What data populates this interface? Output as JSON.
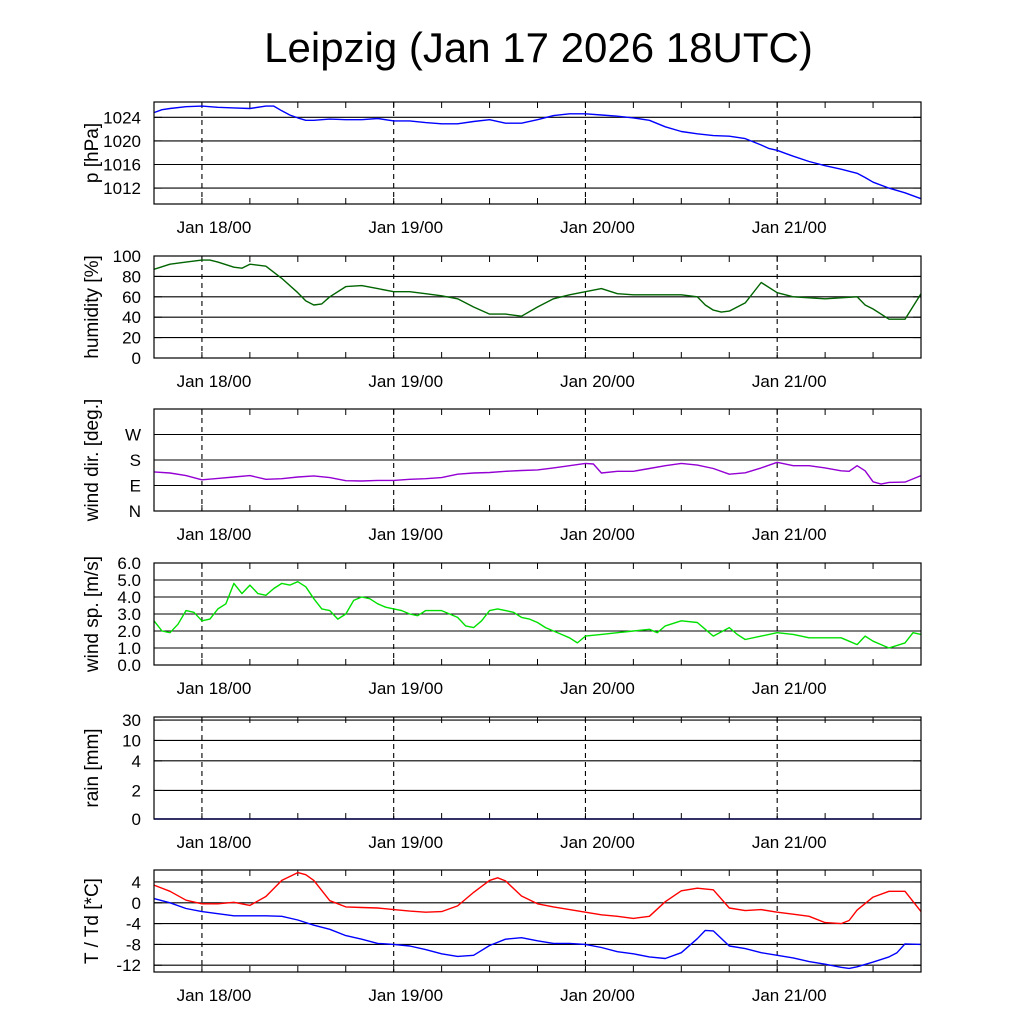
{
  "title": "Leipzig (Jan 17 2026 18UTC)",
  "chart_data": [
    {
      "type": "line",
      "id": "pressure",
      "ylabel": "p [hPa]",
      "ylim": [
        1009.3,
        1026.6
      ],
      "yticks": [
        1012,
        1016,
        1020,
        1024
      ],
      "ytick_labels": [
        "1012",
        "1016",
        "1020",
        "1024"
      ],
      "xlim": [
        0,
        96
      ],
      "xticks": [
        6,
        30,
        54,
        78
      ],
      "xtick_labels": [
        "Jan 18/00",
        "Jan 19/00",
        "Jan 20/00",
        "Jan 21/00"
      ],
      "series": [
        {
          "name": "p",
          "color": "#0000ff",
          "x": [
            0,
            1,
            2,
            4,
            6,
            8,
            10,
            12,
            14,
            15,
            16,
            17,
            18,
            19,
            20,
            22,
            24,
            26,
            28,
            30,
            32,
            34,
            36,
            38,
            40,
            42,
            44,
            46,
            48,
            50,
            52,
            54,
            56,
            58,
            60,
            62,
            64,
            66,
            68,
            70,
            72,
            74,
            76,
            77,
            78,
            79,
            80,
            82,
            84,
            86,
            88,
            89,
            90,
            92,
            94,
            96
          ],
          "values": [
            1024.8,
            1025.3,
            1025.5,
            1025.8,
            1025.9,
            1025.7,
            1025.6,
            1025.5,
            1025.9,
            1025.9,
            1025.1,
            1024.4,
            1023.9,
            1023.5,
            1023.5,
            1023.7,
            1023.6,
            1023.6,
            1023.8,
            1023.4,
            1023.4,
            1023.1,
            1022.9,
            1022.9,
            1023.3,
            1023.6,
            1023.0,
            1023.0,
            1023.6,
            1024.3,
            1024.6,
            1024.6,
            1024.4,
            1024.2,
            1023.9,
            1023.5,
            1022.4,
            1021.6,
            1021.2,
            1020.9,
            1020.8,
            1020.4,
            1019.3,
            1018.7,
            1018.4,
            1017.9,
            1017.4,
            1016.5,
            1015.8,
            1015.2,
            1014.5,
            1013.8,
            1013.0,
            1012.0,
            1011.2,
            1010.2
          ]
        }
      ]
    },
    {
      "type": "line",
      "id": "humidity",
      "ylabel": "humidity [%]",
      "ylim": [
        0,
        100
      ],
      "yticks": [
        0,
        20,
        40,
        60,
        80,
        100
      ],
      "ytick_labels": [
        "0",
        "20",
        "40",
        "60",
        "80",
        "100"
      ],
      "xlim": [
        0,
        96
      ],
      "xticks": [
        6,
        30,
        54,
        78
      ],
      "xtick_labels": [
        "Jan 18/00",
        "Jan 19/00",
        "Jan 20/00",
        "Jan 21/00"
      ],
      "series": [
        {
          "name": "humidity",
          "color": "#006400",
          "x": [
            0,
            2,
            4,
            6,
            7,
            8,
            10,
            11,
            12,
            14,
            16,
            18,
            19,
            20,
            21,
            22,
            24,
            26,
            28,
            30,
            32,
            34,
            36,
            38,
            39,
            40,
            42,
            44,
            46,
            48,
            50,
            52,
            54,
            56,
            58,
            60,
            62,
            64,
            66,
            68,
            69,
            70,
            71,
            72,
            74,
            76,
            78,
            80,
            82,
            84,
            86,
            88,
            89,
            90,
            92,
            94,
            96
          ],
          "values": [
            87,
            92,
            94,
            96,
            96,
            94,
            89,
            88,
            92,
            90,
            78,
            64,
            56,
            52,
            53,
            60,
            70,
            71,
            68,
            65,
            65,
            63,
            61,
            58,
            54,
            50,
            43,
            43,
            41,
            50,
            58,
            62,
            65,
            68,
            63,
            62,
            62,
            62,
            62,
            60,
            52,
            47,
            45,
            46,
            54,
            74,
            64,
            60,
            59,
            58,
            59,
            60,
            52,
            48,
            38,
            38,
            63
          ]
        }
      ]
    },
    {
      "type": "line",
      "id": "wind-direction",
      "ylabel": "wind dir. [deg.]",
      "ylim": [
        0,
        360
      ],
      "yticks": [
        0,
        90,
        180,
        270
      ],
      "ytick_labels": [
        "N",
        "E",
        "S",
        "W"
      ],
      "xlim": [
        0,
        96
      ],
      "xticks": [
        6,
        30,
        54,
        78
      ],
      "xtick_labels": [
        "Jan 18/00",
        "Jan 19/00",
        "Jan 20/00",
        "Jan 21/00"
      ],
      "series": [
        {
          "name": "wind direction",
          "color": "#9400d3",
          "x": [
            0,
            2,
            4,
            6,
            8,
            10,
            12,
            14,
            16,
            18,
            20,
            22,
            24,
            26,
            28,
            30,
            32,
            34,
            36,
            38,
            40,
            42,
            44,
            46,
            48,
            50,
            52,
            54,
            55,
            56,
            58,
            60,
            62,
            64,
            66,
            68,
            70,
            72,
            74,
            76,
            78,
            80,
            82,
            84,
            86,
            87,
            88,
            89,
            90,
            91,
            92,
            94,
            96
          ],
          "values": [
            138,
            134,
            125,
            110,
            115,
            120,
            125,
            112,
            114,
            120,
            124,
            118,
            107,
            106,
            108,
            108,
            112,
            114,
            118,
            130,
            134,
            136,
            140,
            143,
            145,
            152,
            160,
            168,
            166,
            134,
            140,
            140,
            150,
            160,
            168,
            162,
            150,
            130,
            135,
            152,
            172,
            160,
            160,
            152,
            142,
            140,
            160,
            142,
            103,
            95,
            101,
            102,
            125
          ]
        }
      ]
    },
    {
      "type": "line",
      "id": "wind-speed",
      "ylabel": "wind sp. [m/s]",
      "ylim": [
        0,
        6
      ],
      "yticks": [
        0,
        1,
        2,
        3,
        4,
        5,
        6
      ],
      "ytick_labels": [
        "0.0",
        "1.0",
        "2.0",
        "3.0",
        "4.0",
        "5.0",
        "6.0"
      ],
      "xlim": [
        0,
        96
      ],
      "xticks": [
        6,
        30,
        54,
        78
      ],
      "xtick_labels": [
        "Jan 18/00",
        "Jan 19/00",
        "Jan 20/00",
        "Jan 21/00"
      ],
      "series": [
        {
          "name": "wind speed",
          "color": "#00e000",
          "x": [
            0,
            1,
            2,
            3,
            4,
            5,
            6,
            7,
            8,
            9,
            10,
            11,
            12,
            13,
            14,
            15,
            16,
            17,
            18,
            19,
            20,
            21,
            22,
            23,
            24,
            25,
            26,
            27,
            28,
            29,
            30,
            31,
            32,
            33,
            34,
            35,
            36,
            37,
            38,
            39,
            40,
            41,
            42,
            43,
            44,
            45,
            46,
            47,
            48,
            49,
            50,
            51,
            52,
            53,
            54,
            56,
            58,
            60,
            62,
            63,
            64,
            66,
            68,
            69,
            70,
            72,
            73,
            74,
            76,
            78,
            80,
            82,
            84,
            86,
            87,
            88,
            89,
            90,
            91,
            92,
            94,
            95,
            96
          ],
          "values": [
            2.6,
            2.0,
            1.9,
            2.4,
            3.2,
            3.1,
            2.6,
            2.7,
            3.3,
            3.6,
            4.8,
            4.2,
            4.7,
            4.2,
            4.1,
            4.5,
            4.8,
            4.7,
            4.9,
            4.6,
            3.9,
            3.3,
            3.2,
            2.7,
            3.0,
            3.8,
            4.0,
            3.9,
            3.6,
            3.4,
            3.3,
            3.2,
            3.0,
            2.9,
            3.2,
            3.2,
            3.2,
            3.0,
            2.8,
            2.3,
            2.2,
            2.6,
            3.2,
            3.3,
            3.2,
            3.1,
            2.8,
            2.7,
            2.5,
            2.2,
            2.0,
            1.8,
            1.6,
            1.3,
            1.7,
            1.8,
            1.9,
            2.0,
            2.1,
            1.9,
            2.3,
            2.6,
            2.5,
            2.1,
            1.7,
            2.2,
            1.8,
            1.5,
            1.7,
            1.9,
            1.8,
            1.6,
            1.6,
            1.6,
            1.4,
            1.2,
            1.7,
            1.4,
            1.2,
            1.0,
            1.3,
            1.9,
            1.8
          ]
        }
      ]
    },
    {
      "type": "line",
      "id": "rain",
      "ylabel": "rain [mm]",
      "ylim": [
        0,
        30
      ],
      "yticks": [
        0,
        2,
        4,
        10,
        30
      ],
      "ytick_labels": [
        "0",
        "2",
        "4",
        "10",
        "30"
      ],
      "xlim": [
        0,
        96
      ],
      "xticks": [
        6,
        30,
        54,
        78
      ],
      "xtick_labels": [
        "Jan 18/00",
        "Jan 19/00",
        "Jan 20/00",
        "Jan 21/00"
      ],
      "series": [
        {
          "name": "rain",
          "color": "#0000ff",
          "x": [
            0,
            96
          ],
          "values": [
            0,
            0
          ]
        }
      ]
    },
    {
      "type": "line",
      "id": "temperature",
      "ylabel": "T / Td [*C]",
      "ylim": [
        -13.3,
        6.3
      ],
      "yticks": [
        -12,
        -8,
        -4,
        0,
        4
      ],
      "ytick_labels": [
        "-12",
        "-8",
        "-4",
        "0",
        "4"
      ],
      "xlim": [
        0,
        96
      ],
      "xticks": [
        6,
        30,
        54,
        78
      ],
      "xtick_labels": [
        "Jan 18/00",
        "Jan 19/00",
        "Jan 20/00",
        "Jan 21/00"
      ],
      "series": [
        {
          "name": "T",
          "color": "#ff0000",
          "x": [
            0,
            2,
            4,
            6,
            8,
            10,
            12,
            14,
            16,
            18,
            19,
            20,
            22,
            24,
            26,
            28,
            30,
            32,
            34,
            36,
            38,
            40,
            42,
            43,
            44,
            46,
            48,
            50,
            52,
            54,
            56,
            58,
            60,
            62,
            64,
            66,
            68,
            70,
            72,
            74,
            76,
            78,
            80,
            82,
            84,
            86,
            87,
            88,
            90,
            92,
            94,
            96
          ],
          "values": [
            3.4,
            2.2,
            0.5,
            -0.2,
            -0.2,
            0.1,
            -0.5,
            1.2,
            4.3,
            5.8,
            5.4,
            4.3,
            0.4,
            -0.8,
            -0.9,
            -1.0,
            -1.3,
            -1.6,
            -1.8,
            -1.7,
            -0.6,
            2.0,
            4.3,
            4.8,
            4.2,
            1.3,
            -0.2,
            -0.8,
            -1.3,
            -1.8,
            -2.3,
            -2.6,
            -3.0,
            -2.6,
            0.2,
            2.3,
            2.8,
            2.5,
            -1.0,
            -1.5,
            -1.3,
            -1.8,
            -2.2,
            -2.6,
            -3.8,
            -4.0,
            -3.4,
            -1.4,
            1.1,
            2.2,
            2.2,
            -1.7
          ]
        },
        {
          "name": "Td",
          "color": "#0000ff",
          "x": [
            0,
            2,
            4,
            6,
            8,
            10,
            12,
            14,
            16,
            18,
            20,
            22,
            24,
            26,
            28,
            30,
            32,
            34,
            36,
            38,
            40,
            42,
            44,
            46,
            48,
            50,
            52,
            54,
            56,
            58,
            60,
            62,
            64,
            66,
            68,
            69,
            70,
            72,
            74,
            76,
            78,
            80,
            82,
            84,
            86,
            87,
            88,
            90,
            92,
            93,
            94,
            96
          ],
          "values": [
            0.8,
            0.0,
            -1.1,
            -1.7,
            -2.1,
            -2.5,
            -2.5,
            -2.5,
            -2.6,
            -3.3,
            -4.3,
            -5.1,
            -6.3,
            -7.0,
            -7.8,
            -8.0,
            -8.3,
            -9.0,
            -9.8,
            -10.3,
            -10.1,
            -8.2,
            -7.0,
            -6.7,
            -7.3,
            -7.8,
            -7.8,
            -8.0,
            -8.6,
            -9.4,
            -9.8,
            -10.4,
            -10.7,
            -9.6,
            -6.9,
            -5.3,
            -5.4,
            -8.3,
            -8.8,
            -9.6,
            -10.1,
            -10.6,
            -11.3,
            -11.8,
            -12.4,
            -12.6,
            -12.3,
            -11.4,
            -10.4,
            -9.6,
            -7.9,
            -8.0
          ]
        }
      ]
    }
  ]
}
